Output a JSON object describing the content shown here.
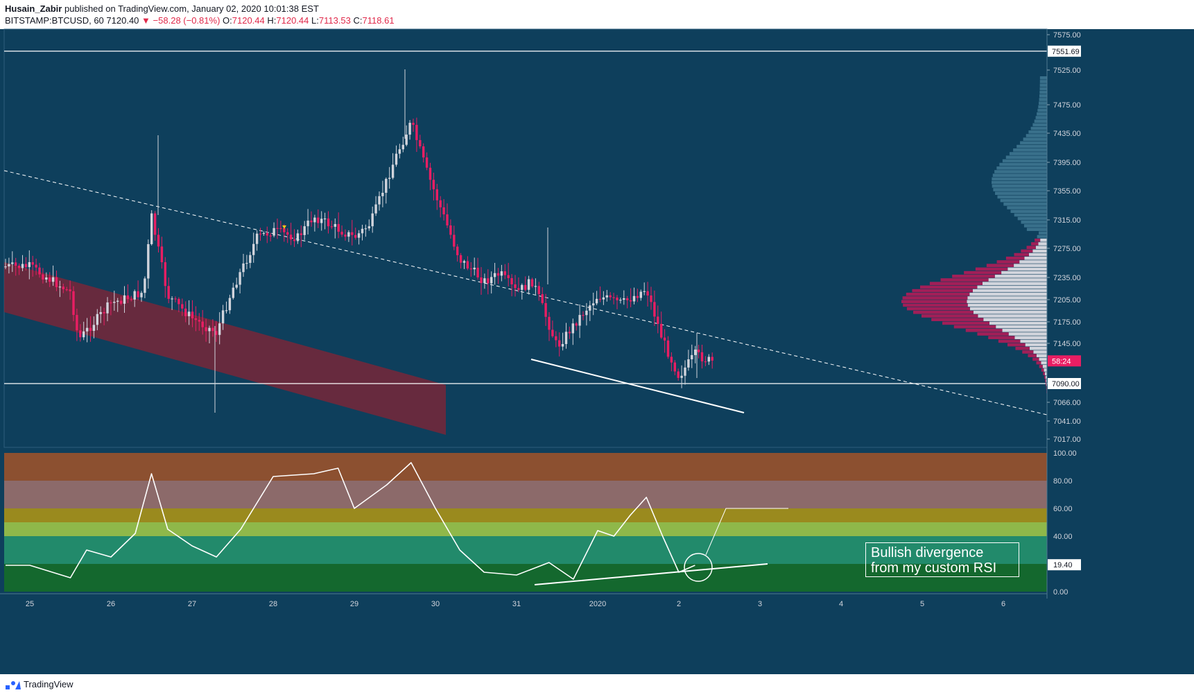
{
  "header": {
    "author": "Husain_Zabir",
    "published": "published on TradingView.com, January 02, 2020 10:01:38 EST",
    "symbol": "BITSTAMP:BTCUSD, 60",
    "last": "7120.40",
    "change": "−58.28 (−0.81%)",
    "open_label": "O:",
    "open": "7120.44",
    "high_label": "H:",
    "high": "7120.44",
    "low_label": "L:",
    "low": "7113.53",
    "close_label": "C:",
    "close": "7118.61"
  },
  "footer": {
    "brand": "TradingView"
  },
  "colors": {
    "panel_bg": "#0e3f5c",
    "bull": "#d1d4dc",
    "bear": "#e91e63",
    "volume_profile_up": "#d1d4dc",
    "volume_profile_down": "#a11f58"
  },
  "annotation": {
    "line1": "Bullish divergence",
    "line2": "from my custom RSI"
  },
  "chart_data": [
    {
      "type": "candlestick",
      "symbol": "BITSTAMP:BTCUSD",
      "interval": "60",
      "x_tick_labels": [
        "25",
        "26",
        "27",
        "28",
        "29",
        "30",
        "31",
        "2020",
        "2",
        "3",
        "4",
        "5",
        "6"
      ],
      "y_tick_labels": [
        "7575.00",
        "7525.00",
        "7475.00",
        "7435.00",
        "7395.00",
        "7355.00",
        "7315.00",
        "7275.00",
        "7235.00",
        "7205.00",
        "7175.00",
        "7145.00",
        "7090.00",
        "7066.00",
        "7041.00",
        "7017.00"
      ],
      "price_labels": {
        "resistance": "7551.69",
        "support": "7090.00",
        "countdown": "58:24"
      },
      "horizontal_lines": [
        7551.69,
        7090.0
      ],
      "approx_path": [
        [
          "25",
          7250
        ],
        [
          "25.5",
          7215
        ],
        [
          "25.6",
          7150
        ],
        [
          "26",
          7200
        ],
        [
          "26.4",
          7215
        ],
        [
          "26.5",
          7320
        ],
        [
          "26.7",
          7210
        ],
        [
          "27",
          7180
        ],
        [
          "27.3",
          7160
        ],
        [
          "27.5",
          7220
        ],
        [
          "27.8",
          7290
        ],
        [
          "28",
          7300
        ],
        [
          "28.3",
          7290
        ],
        [
          "28.5",
          7320
        ],
        [
          "29",
          7290
        ],
        [
          "29.2",
          7310
        ],
        [
          "29.5",
          7400
        ],
        [
          "29.7",
          7450
        ],
        [
          "29.9",
          7380
        ],
        [
          "30",
          7350
        ],
        [
          "30.3",
          7260
        ],
        [
          "30.6",
          7230
        ],
        [
          "30.8",
          7240
        ],
        [
          "31",
          7215
        ],
        [
          "31.2",
          7230
        ],
        [
          "31.5",
          7140
        ],
        [
          "31.8",
          7185
        ],
        [
          "2020",
          7210
        ],
        [
          "1.3",
          7200
        ],
        [
          "1.6",
          7220
        ],
        [
          "1.8",
          7150
        ],
        [
          "2",
          7100
        ],
        [
          "2.2",
          7130
        ],
        [
          "2.4",
          7120
        ]
      ]
    },
    {
      "type": "line",
      "name": "RSI",
      "y_tick_labels": [
        "100.00",
        "80.00",
        "60.00",
        "40.00",
        "19.40",
        "0.00"
      ],
      "last_value_label": "19.40",
      "ylim": [
        0,
        100
      ],
      "bands": [
        20,
        40,
        50,
        60,
        70,
        80,
        100
      ],
      "approx_path": [
        [
          "25",
          19
        ],
        [
          "25.5",
          10
        ],
        [
          "25.7",
          30
        ],
        [
          "26",
          25
        ],
        [
          "26.3",
          42
        ],
        [
          "26.5",
          85
        ],
        [
          "26.7",
          45
        ],
        [
          "27",
          33
        ],
        [
          "27.3",
          25
        ],
        [
          "27.6",
          45
        ],
        [
          "28",
          83
        ],
        [
          "28.5",
          85
        ],
        [
          "28.8",
          89
        ],
        [
          "29",
          60
        ],
        [
          "29.4",
          77
        ],
        [
          "29.7",
          93
        ],
        [
          "30",
          60
        ],
        [
          "30.3",
          30
        ],
        [
          "30.6",
          14
        ],
        [
          "31",
          12
        ],
        [
          "31.4",
          21
        ],
        [
          "31.7",
          9
        ],
        [
          "2020",
          44
        ],
        [
          "1.2",
          40
        ],
        [
          "1.4",
          55
        ],
        [
          "1.6",
          68
        ],
        [
          "1.8",
          40
        ],
        [
          "2",
          14
        ],
        [
          "2.2",
          19
        ]
      ]
    }
  ]
}
